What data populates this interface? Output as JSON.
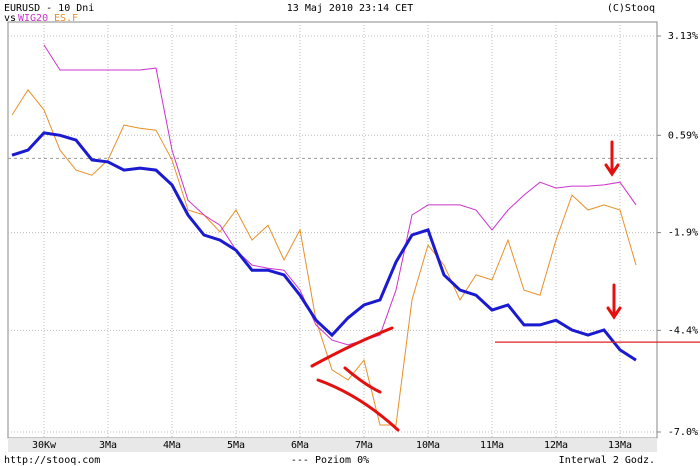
{
  "chart_data": {
    "type": "line",
    "title": "EURUSD - 10 Dni",
    "subtitle": "vs",
    "date": "13 Maj 2010 23:14 CET",
    "source": "(C)Stooq",
    "url": "http://stooq.com",
    "legend_note": "--- Poziom 0%",
    "interval": "Interwal 2 Godz.",
    "x": [
      0,
      0.25,
      0.5,
      0.75,
      1,
      1.25,
      1.5,
      1.75,
      2,
      2.25,
      2.5,
      2.75,
      3,
      3.25,
      3.5,
      3.75,
      4,
      4.25,
      4.5,
      4.75,
      5,
      5.25,
      5.5,
      5.75,
      6,
      6.25,
      6.5,
      6.75,
      7,
      7.25,
      7.5,
      7.75,
      8,
      8.25,
      8.5,
      8.75,
      9,
      9.25,
      9.5,
      9.75
    ],
    "xlim": [
      0,
      10
    ],
    "xticks": [
      {
        "value": 0.5,
        "label": "30Kw"
      },
      {
        "value": 1.5,
        "label": "3Ma"
      },
      {
        "value": 2.5,
        "label": "4Ma"
      },
      {
        "value": 3.5,
        "label": "5Ma"
      },
      {
        "value": 4.5,
        "label": "6Ma"
      },
      {
        "value": 5.5,
        "label": "7Ma"
      },
      {
        "value": 6.5,
        "label": "10Ma"
      },
      {
        "value": 7.5,
        "label": "11Ma"
      },
      {
        "value": 8.5,
        "label": "12Ma"
      },
      {
        "value": 9.5,
        "label": "13Ma"
      }
    ],
    "ylim": [
      -7.0,
      3.13
    ],
    "yticks": [
      {
        "value": 3.13,
        "label": "3.13%"
      },
      {
        "value": 0.59,
        "label": "0.59%"
      },
      {
        "value": -1.9,
        "label": "-1.9%"
      },
      {
        "value": -4.4,
        "label": "-4.4%"
      },
      {
        "value": -7.0,
        "label": "-7.0%"
      }
    ],
    "zero_line": 0,
    "hline": {
      "value": -4.7,
      "color": "#e02020"
    },
    "series": [
      {
        "name": "EURUSD",
        "color": "#1a1ad0",
        "width": 3,
        "values": [
          0.08,
          0.21,
          0.65,
          0.59,
          0.47,
          -0.04,
          -0.09,
          -0.3,
          -0.25,
          -0.3,
          -0.68,
          -1.45,
          -1.96,
          -2.09,
          -2.35,
          -2.86,
          -2.86,
          -2.98,
          -3.5,
          -4.14,
          -4.52,
          -4.08,
          -3.75,
          -3.62,
          -2.65,
          -1.96,
          -1.83,
          -2.98,
          -3.37,
          -3.5,
          -3.88,
          -3.75,
          -4.26,
          -4.26,
          -4.14,
          -4.39,
          -4.52,
          -4.39,
          -4.9,
          -5.16
        ]
      },
      {
        "name": "WIG20",
        "color": "#cc33cc",
        "width": 1,
        "values": [
          null,
          null,
          2.9,
          2.26,
          2.26,
          2.26,
          2.26,
          2.26,
          2.26,
          2.31,
          0.21,
          -1.07,
          -1.45,
          -1.71,
          -2.35,
          -2.73,
          -2.81,
          -2.86,
          -3.37,
          -4.26,
          -4.65,
          -4.77,
          -4.65,
          -4.52,
          -3.37,
          -1.45,
          -1.19,
          -1.19,
          -1.19,
          -1.32,
          -1.83,
          -1.32,
          -0.94,
          -0.61,
          -0.76,
          -0.71,
          -0.71,
          -0.68,
          -0.61,
          -1.19
        ]
      },
      {
        "name": "ES.F",
        "color": "#e8902a",
        "width": 1,
        "values": [
          1.11,
          1.75,
          1.24,
          0.21,
          -0.3,
          -0.43,
          -0.04,
          0.85,
          0.77,
          0.72,
          -0.04,
          -1.32,
          -1.45,
          -1.88,
          -1.32,
          -2.09,
          -1.71,
          -2.6,
          -1.83,
          -4.14,
          -5.41,
          -5.67,
          -5.16,
          -6.82,
          -6.82,
          -3.62,
          -2.22,
          -2.73,
          -3.62,
          -2.98,
          -3.11,
          -2.09,
          -3.37,
          -3.5,
          -2.09,
          -0.94,
          -1.32,
          -1.19,
          -1.32,
          -2.73
        ]
      }
    ]
  }
}
